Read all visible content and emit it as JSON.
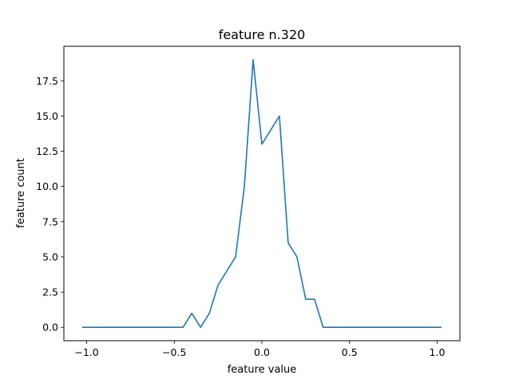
{
  "chart_data": {
    "type": "line",
    "title": "feature n.320",
    "xlabel": "feature value",
    "ylabel": "feature count",
    "xlim": [
      -1.13,
      1.13
    ],
    "ylim": [
      -0.95,
      19.95
    ],
    "xticks": [
      -1.0,
      -0.5,
      0.0,
      0.5,
      1.0
    ],
    "xtick_labels": [
      "−1.0",
      "−0.5",
      "0.0",
      "0.5",
      "1.0"
    ],
    "yticks": [
      0.0,
      2.5,
      5.0,
      7.5,
      10.0,
      12.5,
      15.0,
      17.5
    ],
    "ytick_labels": [
      "0.0",
      "2.5",
      "5.0",
      "7.5",
      "10.0",
      "12.5",
      "15.0",
      "17.5"
    ],
    "grid": false,
    "series": [
      {
        "color": "#1f77b4",
        "x": [
          -1.025,
          -0.975,
          -0.925,
          -0.875,
          -0.825,
          -0.775,
          -0.725,
          -0.675,
          -0.625,
          -0.575,
          -0.525,
          -0.475,
          -0.45,
          -0.4,
          -0.35,
          -0.3,
          -0.25,
          -0.2,
          -0.15,
          -0.1,
          -0.05,
          0.0,
          0.05,
          0.1,
          0.15,
          0.2,
          0.25,
          0.3,
          0.35,
          0.4,
          0.45,
          0.5,
          0.55,
          0.6,
          0.65,
          0.7,
          0.75,
          0.8,
          0.85,
          0.9,
          0.95,
          1.0,
          1.025
        ],
        "y": [
          0,
          0,
          0,
          0,
          0,
          0,
          0,
          0,
          0,
          0,
          0,
          0,
          0,
          1,
          0,
          1,
          3,
          4,
          5,
          10,
          19,
          13,
          14,
          15,
          6,
          5,
          2,
          2,
          0,
          0,
          0,
          0,
          0,
          0,
          0,
          0,
          0,
          0,
          0,
          0,
          0,
          0,
          0
        ]
      }
    ]
  }
}
